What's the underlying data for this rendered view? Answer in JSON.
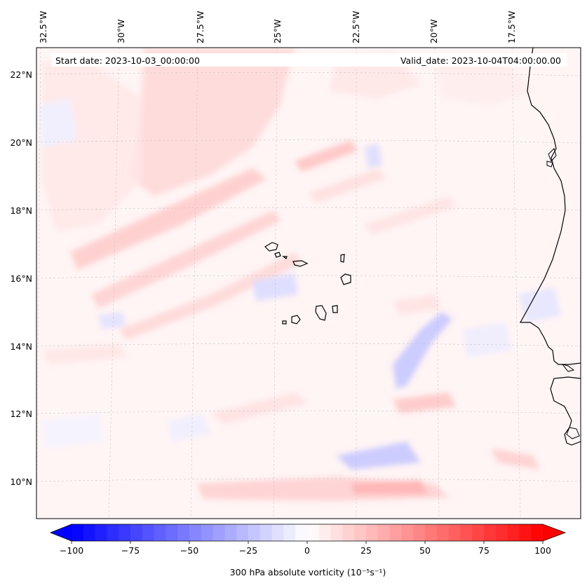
{
  "header": {
    "start_date": "Start date: 2023-10-03_00:00:00",
    "valid_date": "Valid_date: 2023-10-04T04:00:00.00"
  },
  "longitude_labels": [
    "32.5°W",
    "30°W",
    "27.5°W",
    "25°W",
    "22.5°W",
    "20°W",
    "17.5°W"
  ],
  "latitude_labels": [
    "22°N",
    "20°N",
    "18°N",
    "16°N",
    "14°N",
    "12°N",
    "10°N"
  ],
  "colorbar": {
    "label": "300 hPa absolute vorticity (10⁻⁵s⁻¹)",
    "ticks": [
      "−100",
      "−75",
      "−50",
      "−25",
      "0",
      "25",
      "50",
      "75",
      "100"
    ],
    "min": -100,
    "max": 100,
    "colormap": "bwr",
    "low_color": "#0000ff",
    "mid_color": "#ffffff",
    "high_color": "#ff0000"
  },
  "map": {
    "projection": "lambert-conformal",
    "gridlines": true,
    "coastline_color": "#000000"
  }
}
